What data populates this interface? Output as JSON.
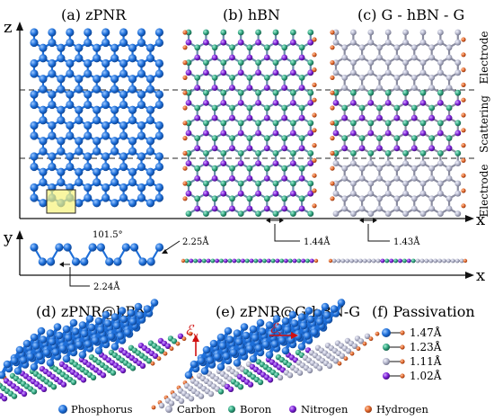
{
  "panels": {
    "a": "(a) zPNR",
    "b": "(b) hBN",
    "c": "(c) G - hBN - G",
    "d": "(d) zPNR@hBN",
    "e": "(e) zPNR@G-hBN-G",
    "f": "(f) Passivation"
  },
  "axes": {
    "z": "z",
    "x": "x",
    "y": "y",
    "x_bottom": "x"
  },
  "regions": {
    "top": "Electrode",
    "middle": "Scattering",
    "bottom": "Electrode"
  },
  "measurements": {
    "angle": "101.5°",
    "p_top": "2.25Å",
    "p_bottom": "2.24Å",
    "hbn": "1.44Å",
    "gra": "1.43Å"
  },
  "field_labels": {
    "ey_sym": "ℰ",
    "ey_sub": "y",
    "ex_sym": "ℰ",
    "ex_sub": "x"
  },
  "passivation": [
    {
      "atom": "phosphorus",
      "length": "1.47Å",
      "color": "#1e6fd9"
    },
    {
      "atom": "boron",
      "length": "1.23Å",
      "color": "#2fa27e"
    },
    {
      "atom": "carbon",
      "length": "1.11Å",
      "color": "#b2b4c9"
    },
    {
      "atom": "nitrogen",
      "length": "1.02Å",
      "color": "#7a1fd6"
    }
  ],
  "legend": [
    {
      "label": "Phosphorus",
      "color": "#1e6fd9"
    },
    {
      "label": "Carbon",
      "color": "#b2b4c9"
    },
    {
      "label": "Boron",
      "color": "#2fa27e"
    },
    {
      "label": "Nitrogen",
      "color": "#7a1fd6"
    },
    {
      "label": "Hydrogen",
      "color": "#e0662a"
    }
  ],
  "colors": {
    "hydrogen": "#e0662a",
    "phosphorus": "#1e6fd9",
    "highlight": "#f6f27a"
  }
}
